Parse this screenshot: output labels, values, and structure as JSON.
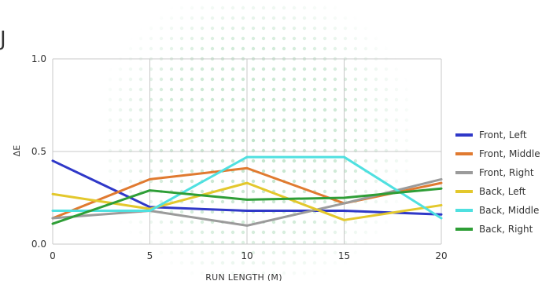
{
  "corner_glyph": "J",
  "chart_data": {
    "type": "line",
    "title": "",
    "xlabel": "RUN LENGTH (M)",
    "ylabel": "ΔE",
    "xlim": [
      0,
      20
    ],
    "ylim": [
      0,
      1
    ],
    "x_ticks": [
      "0",
      "5",
      "10",
      "15",
      "20"
    ],
    "y_ticks": [
      "0.0",
      "0.5",
      "1.0"
    ],
    "grid": true,
    "legend_position": "right",
    "x": [
      0,
      5,
      10,
      15,
      20
    ],
    "series": [
      {
        "name": "Front, Left",
        "color": "#2f38c8",
        "values": [
          0.45,
          0.2,
          0.18,
          0.18,
          0.16
        ]
      },
      {
        "name": "Front, Middle",
        "color": "#e07a30",
        "values": [
          0.14,
          0.35,
          0.41,
          0.22,
          0.33
        ]
      },
      {
        "name": "Front, Right",
        "color": "#9b9b9b",
        "values": [
          0.14,
          0.18,
          0.1,
          0.22,
          0.35
        ]
      },
      {
        "name": "Back, Left",
        "color": "#e3c82c",
        "values": [
          0.27,
          0.19,
          0.33,
          0.13,
          0.21
        ]
      },
      {
        "name": "Back, Middle",
        "color": "#4fe0e0",
        "values": [
          0.18,
          0.18,
          0.47,
          0.47,
          0.14
        ]
      },
      {
        "name": "Back, Right",
        "color": "#2e9e36",
        "values": [
          0.11,
          0.29,
          0.24,
          0.25,
          0.3
        ]
      }
    ]
  }
}
